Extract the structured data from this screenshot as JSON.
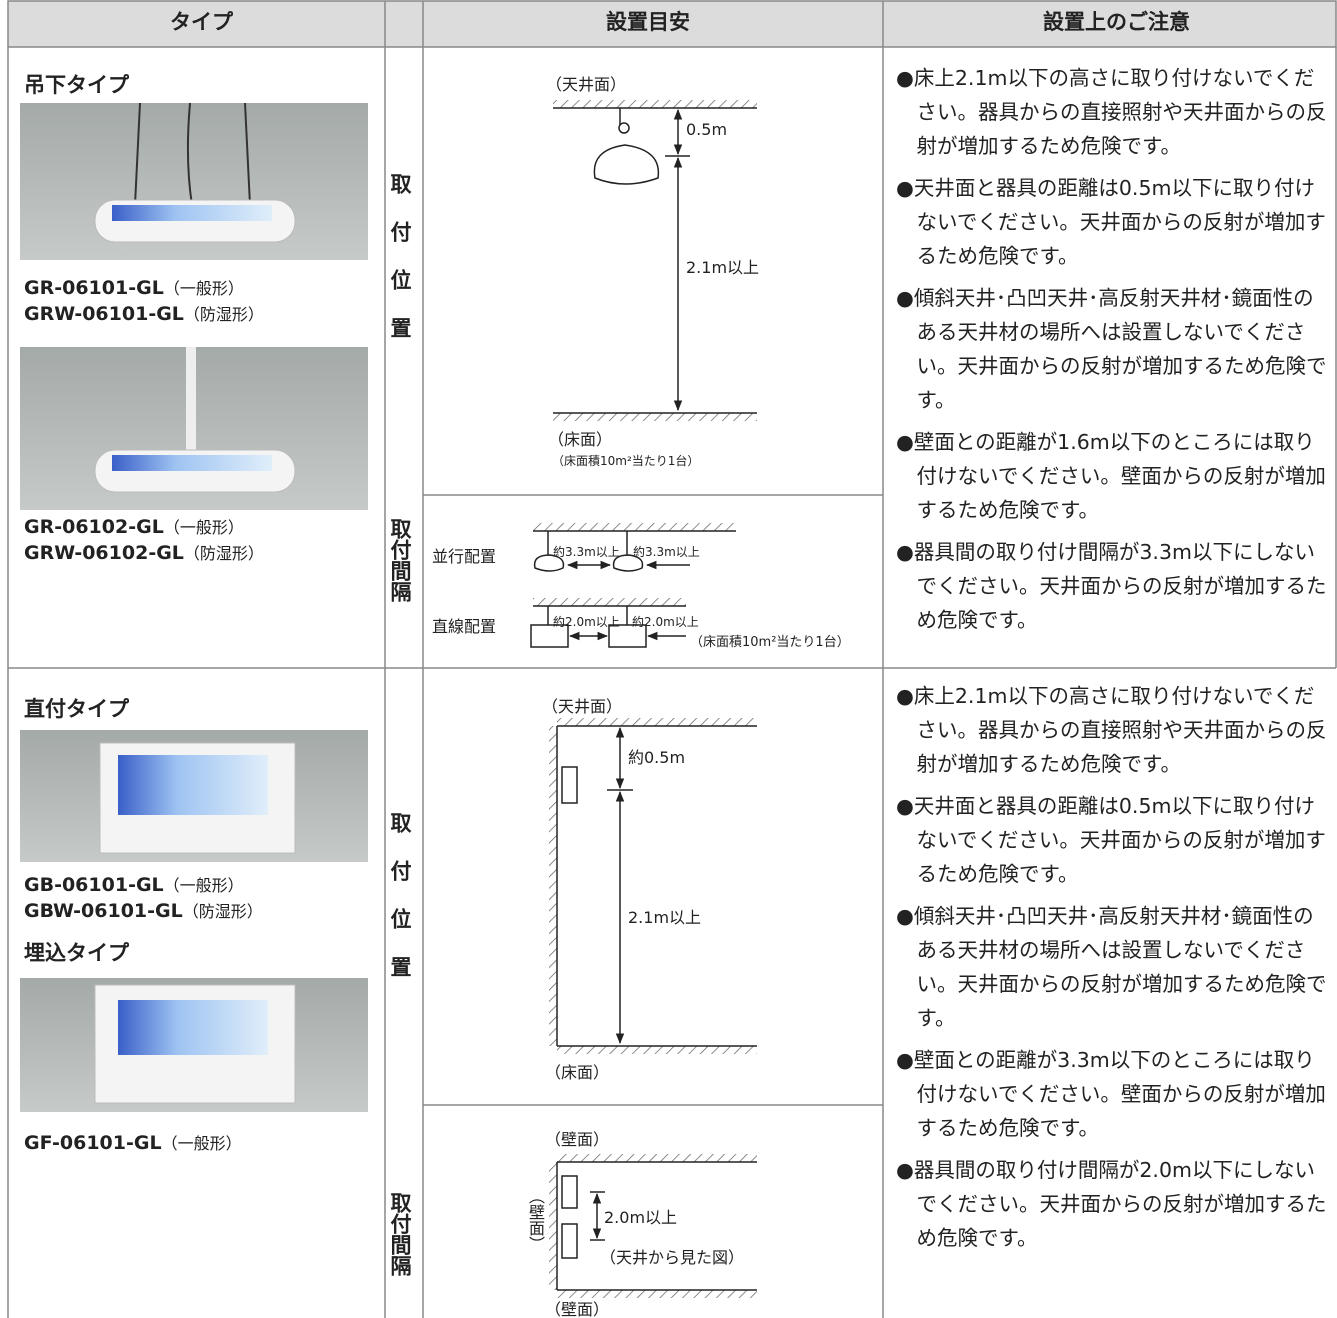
{
  "header": {
    "type": "タイプ",
    "guide": "設置目安",
    "cautions": "設置上のご注意"
  },
  "sections": [
    {
      "groups": [
        {
          "title": "吊下タイプ",
          "models": [
            {
              "code": "GR-06101-GL",
              "kind": "（一般形）"
            },
            {
              "code": "GRW-06101-GL",
              "kind": "（防湿形）"
            }
          ]
        },
        {
          "models": [
            {
              "code": "GR-06102-GL",
              "kind": "（一般形）"
            },
            {
              "code": "GRW-06102-GL",
              "kind": "（防湿形）"
            }
          ]
        }
      ],
      "position_label": "取付位置",
      "spacing_label": "取付間隔",
      "position_diagram": {
        "ceiling": "（天井面）",
        "gap": "0.5m",
        "height": "2.1m以上",
        "floor": "（床面）",
        "note": "（床面積10m²当たり1台）"
      },
      "spacing_diagram": {
        "parallel": "並行配置",
        "parallel_gap_1": "約3.3m以上",
        "parallel_gap_2": "約3.3m以上",
        "linear": "直線配置",
        "linear_gap_1": "約2.0m以上",
        "linear_gap_2": "約2.0m以上",
        "note": "（床面積10m²当たり1台）"
      },
      "notes": [
        "●床上2.1m以下の高さに取り付けないでください。器具からの直接照射や天井面からの反射が増加するため危険です。",
        "●天井面と器具の距離は0.5m以下に取り付けないでください。天井面からの反射が増加するため危険です。",
        "●傾斜天井･凸凹天井･高反射天井材･鏡面性のある天井材の場所へは設置しないでください。天井面からの反射が増加するため危険です。",
        "●壁面との距離が1.6m以下のところには取り付けないでください。壁面からの反射が増加するため危険です。",
        "●器具間の取り付け間隔が3.3m以下にしないでください。天井面からの反射が増加するため危険です。"
      ]
    },
    {
      "groups": [
        {
          "title": "直付タイプ",
          "models": [
            {
              "code": "GB-06101-GL",
              "kind": "（一般形）"
            },
            {
              "code": "GBW-06101-GL",
              "kind": "（防湿形）"
            }
          ]
        },
        {
          "title": "埋込タイプ",
          "models": [
            {
              "code": "GF-06101-GL",
              "kind": "（一般形）"
            }
          ]
        }
      ],
      "position_label": "取付位置",
      "spacing_label": "取付間隔",
      "position_diagram": {
        "ceiling": "（天井面）",
        "gap": "約0.5m",
        "height": "2.1m以上",
        "floor": "（床面）"
      },
      "spacing_diagram": {
        "top_wall": "（壁面）",
        "side_wall": "（壁面）",
        "gap": "2.0m以上",
        "view": "（天井から見た図）",
        "bottom_wall": "（壁面）"
      },
      "notes": [
        "●床上2.1m以下の高さに取り付けないでください。器具からの直接照射や天井面からの反射が増加するため危険です。",
        "●天井面と器具の距離は0.5m以下に取り付けないでください。天井面からの反射が増加するため危険です。",
        "●傾斜天井･凸凹天井･高反射天井材･鏡面性のある天井材の場所へは設置しないでください。天井面からの反射が増加するため危険です。",
        "●壁面との距離が3.3m以下のところには取り付けないでください。壁面からの反射が増加するため危険です。",
        "●器具間の取り付け間隔が2.0m以下にしないでください。天井面からの反射が増加するため危険です。"
      ]
    }
  ]
}
